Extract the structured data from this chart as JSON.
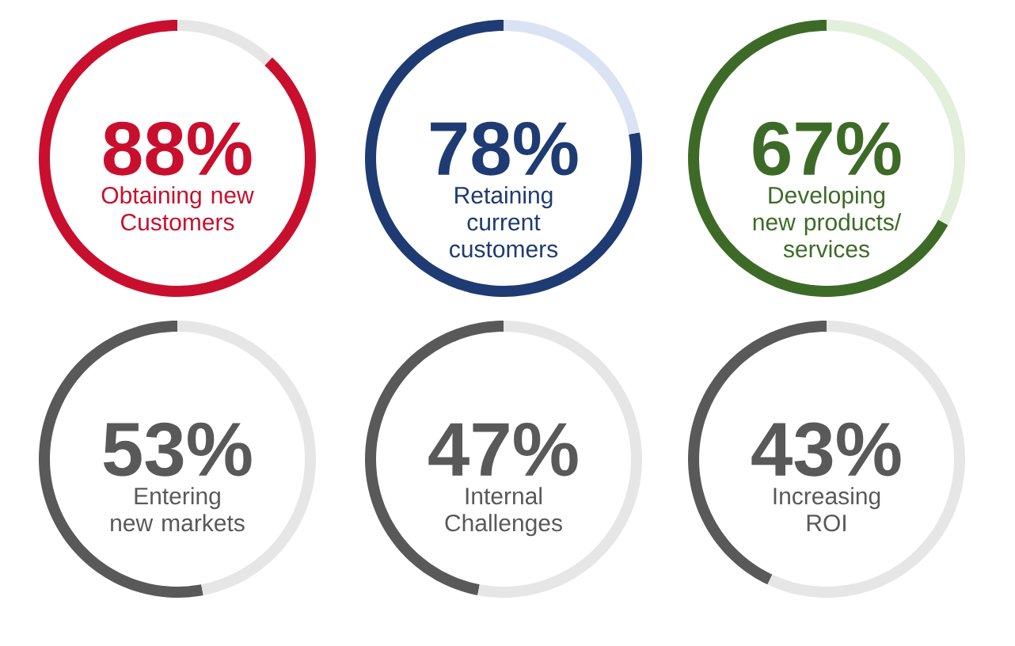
{
  "chart_data": [
    {
      "type": "donut",
      "categories": [
        "Obtaining new Customers",
        null
      ],
      "values": [
        88,
        12
      ],
      "value_labels": [
        "88%",
        null
      ],
      "colors": [
        "#c8102e",
        "#e6e6e6"
      ]
    },
    {
      "type": "donut",
      "categories": [
        "Retaining current customers",
        null
      ],
      "values": [
        78,
        22
      ],
      "value_labels": [
        "78%",
        null
      ],
      "colors": [
        "#1f3b73",
        "#dae3f3"
      ]
    },
    {
      "type": "donut",
      "categories": [
        "Developing new products/ services",
        null
      ],
      "values": [
        67,
        33
      ],
      "value_labels": [
        "67%",
        null
      ],
      "colors": [
        "#3d6b27",
        "#e2efda"
      ]
    },
    {
      "type": "donut",
      "categories": [
        "Entering new markets",
        null
      ],
      "values": [
        53,
        47
      ],
      "value_labels": [
        "53%",
        null
      ],
      "colors": [
        "#595959",
        "#e6e6e6"
      ]
    },
    {
      "type": "donut",
      "categories": [
        "Internal Challenges",
        null
      ],
      "values": [
        47,
        53
      ],
      "value_labels": [
        "47%",
        null
      ],
      "colors": [
        "#595959",
        "#e6e6e6"
      ]
    },
    {
      "type": "donut",
      "categories": [
        "Increasing ROI",
        null
      ],
      "values": [
        43,
        57
      ],
      "value_labels": [
        "43%",
        null
      ],
      "colors": [
        "#595959",
        "#e6e6e6"
      ]
    }
  ]
}
